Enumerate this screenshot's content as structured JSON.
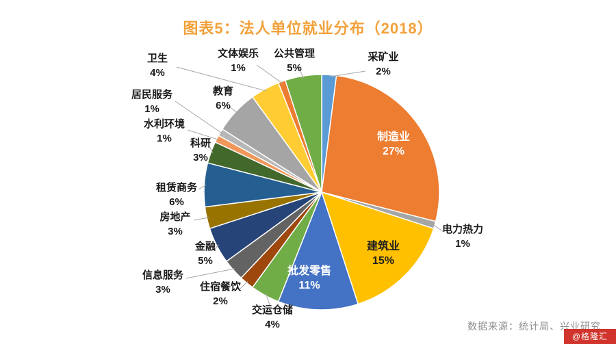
{
  "title": "图表5：法人单位就业分布（2018）",
  "footer": {
    "source": "数据来源：统计局、兴业研究",
    "watermark": "@格隆汇"
  },
  "colors": {
    "title": "#F2A13A",
    "label_text": "#1a1a1a",
    "leader_line": "#a6a6a6",
    "source_text": "#8c8c8c",
    "watermark_bg": "#d0342c"
  },
  "chart_data": {
    "type": "pie",
    "title": "图表5：法人单位就业分布（2018）",
    "value_unit": "%",
    "start_angle_deg": 0,
    "direction": "clockwise",
    "legend": "none",
    "label_style": "category name + percent, leader lines for small slices, large slices labeled inside",
    "series": [
      {
        "label": "采矿业",
        "value": 2,
        "color": "#5B9BD5"
      },
      {
        "label": "制造业",
        "value": 27,
        "color": "#ED7D31"
      },
      {
        "label": "电力热力",
        "value": 1,
        "color": "#A5A5A5"
      },
      {
        "label": "建筑业",
        "value": 15,
        "color": "#FFC000"
      },
      {
        "label": "批发零售",
        "value": 11,
        "color": "#4472C4"
      },
      {
        "label": "交运仓储",
        "value": 4,
        "color": "#70AD47"
      },
      {
        "label": "住宿餐饮",
        "value": 2,
        "color": "#9E480E"
      },
      {
        "label": "信息服务",
        "value": 3,
        "color": "#636363"
      },
      {
        "label": "金融",
        "value": 5,
        "color": "#264478"
      },
      {
        "label": "房地产",
        "value": 3,
        "color": "#997300"
      },
      {
        "label": "租赁商务",
        "value": 6,
        "color": "#255E91"
      },
      {
        "label": "科研",
        "value": 3,
        "color": "#43682B"
      },
      {
        "label": "水利环境",
        "value": 1,
        "color": "#F1975A"
      },
      {
        "label": "居民服务",
        "value": 1,
        "color": "#B7B7B7"
      },
      {
        "label": "教育",
        "value": 6,
        "color": "#A5A5A5"
      },
      {
        "label": "卫生",
        "value": 4,
        "color": "#FFCD33"
      },
      {
        "label": "文体娱乐",
        "value": 1,
        "color": "#ED7D31"
      },
      {
        "label": "公共管理",
        "value": 5,
        "color": "#70AD47"
      }
    ]
  }
}
